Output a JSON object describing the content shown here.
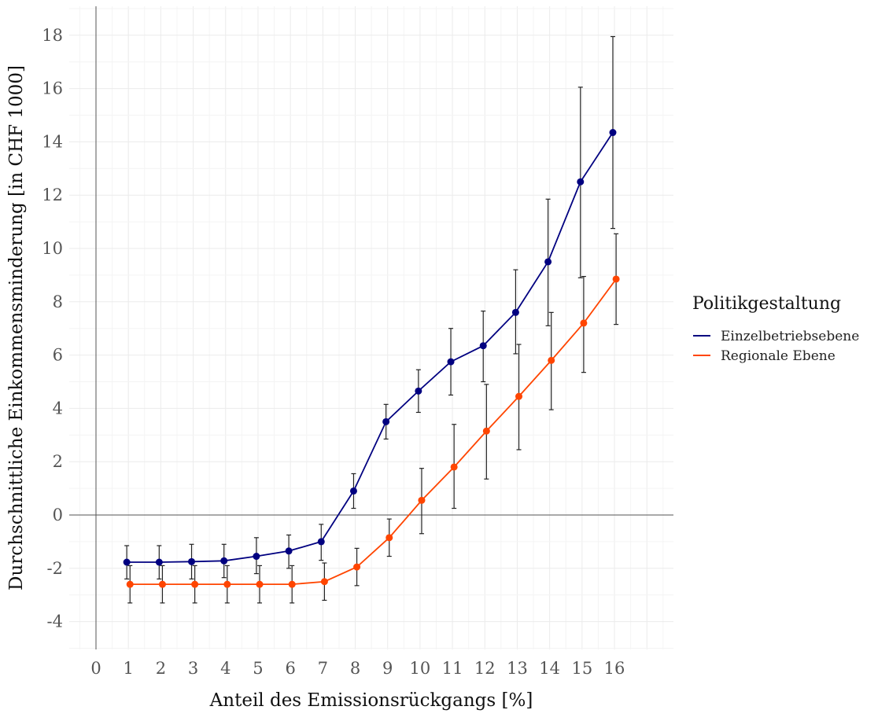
{
  "chart_data": {
    "type": "line",
    "title": "",
    "xlabel": "Anteil des Emissionsrückgangs [%]",
    "ylabel": "Durchschnittliche Einkommensminderung [in CHF 1000]",
    "xlim": [
      -0.8,
      17.8
    ],
    "ylim": [
      -5,
      19
    ],
    "x_ticks": [
      0,
      1,
      2,
      3,
      4,
      5,
      6,
      7,
      8,
      9,
      10,
      11,
      12,
      13,
      14,
      15,
      16
    ],
    "x_tick_labels": [
      "0",
      "1",
      "2",
      "3",
      "4",
      "5",
      "6",
      "7",
      "8",
      "9",
      "10",
      "11",
      "12",
      "13",
      "14",
      "15",
      "16"
    ],
    "y_ticks": [
      -4,
      -2,
      0,
      2,
      4,
      6,
      8,
      10,
      12,
      14,
      16,
      18
    ],
    "y_tick_labels": [
      "-4",
      "-2",
      "0",
      "2",
      "4",
      "6",
      "8",
      "10",
      "12",
      "14",
      "16",
      "18"
    ],
    "grid": true,
    "legend": {
      "title": "Politikgestaltung",
      "position": "right"
    },
    "x": [
      1,
      2,
      3,
      4,
      5,
      6,
      7,
      8,
      9,
      10,
      11,
      12,
      13,
      14,
      15,
      16
    ],
    "series": [
      {
        "name": "Einzelbetriebsebene",
        "color": "#000080",
        "values": [
          -1.77,
          -1.77,
          -1.75,
          -1.72,
          -1.55,
          -1.35,
          -1.0,
          0.9,
          3.5,
          4.65,
          5.75,
          6.35,
          7.6,
          9.5,
          12.5,
          14.35
        ],
        "upper": [
          -1.15,
          -1.15,
          -1.1,
          -1.1,
          -0.85,
          -0.75,
          -0.35,
          1.55,
          4.15,
          5.45,
          7.0,
          7.65,
          9.2,
          11.85,
          16.05,
          17.95
        ],
        "lower": [
          -2.4,
          -2.4,
          -2.4,
          -2.35,
          -2.2,
          -2.0,
          -1.7,
          0.25,
          2.85,
          3.85,
          4.5,
          5.0,
          6.05,
          7.1,
          8.9,
          10.75
        ]
      },
      {
        "name": "Regionale Ebene",
        "color": "#FF4500",
        "values": [
          -2.6,
          -2.6,
          -2.6,
          -2.6,
          -2.6,
          -2.6,
          -2.5,
          -1.95,
          -0.85,
          0.55,
          1.8,
          3.15,
          4.45,
          5.8,
          7.2,
          8.85
        ],
        "upper": [
          -1.9,
          -1.9,
          -1.9,
          -1.9,
          -1.9,
          -1.9,
          -1.8,
          -1.25,
          -0.15,
          1.75,
          3.4,
          4.9,
          6.4,
          7.6,
          8.95,
          10.55
        ],
        "lower": [
          -3.3,
          -3.3,
          -3.3,
          -3.3,
          -3.3,
          -3.3,
          -3.2,
          -2.65,
          -1.55,
          -0.7,
          0.25,
          1.35,
          2.45,
          3.95,
          5.35,
          7.15
        ]
      }
    ]
  }
}
